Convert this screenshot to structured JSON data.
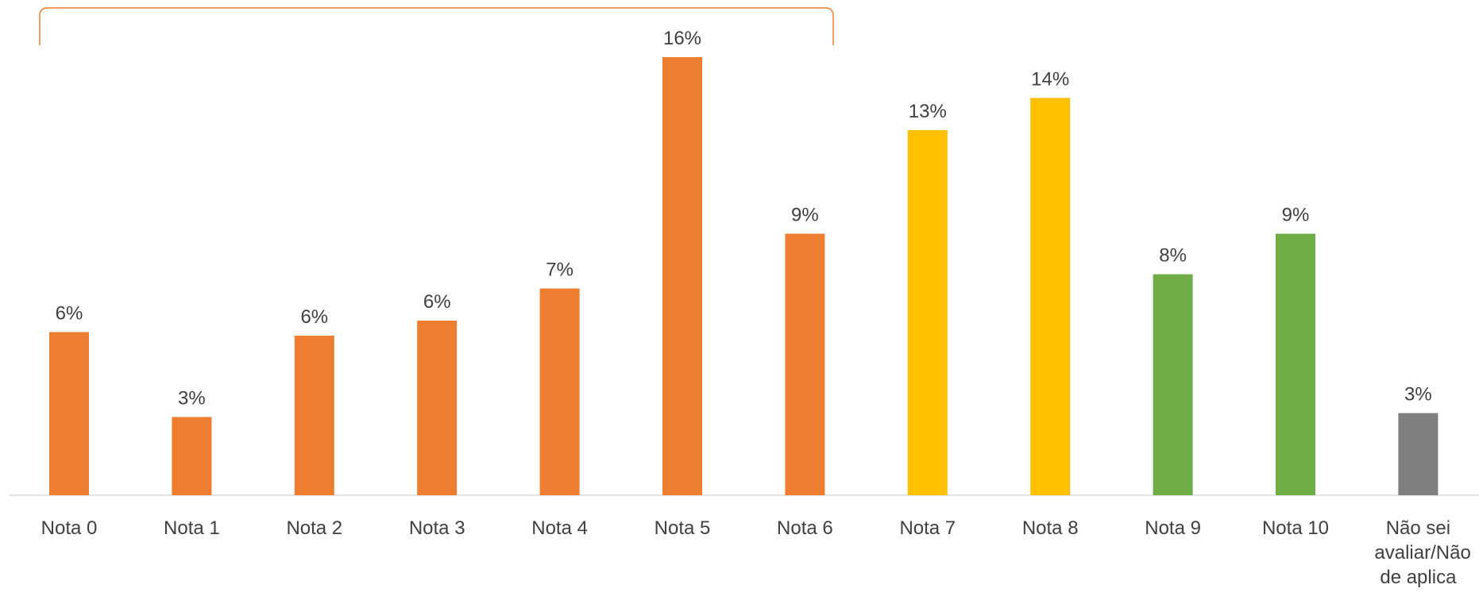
{
  "chart_data": {
    "type": "bar",
    "categories": [
      "Nota 0",
      "Nota 1",
      "Nota 2",
      "Nota 3",
      "Nota 4",
      "Nota 5",
      "Nota 6",
      "Nota 7",
      "Nota 8",
      "Nota 9",
      "Nota 10",
      "Não sei avaliar/Não de aplica"
    ],
    "values": [
      5.84,
      2.8,
      5.71,
      6.25,
      7.4,
      15.68,
      9.36,
      13.07,
      14.22,
      7.91,
      9.36,
      2.94
    ],
    "value_labels": [
      "6%",
      "3%",
      "6%",
      "6%",
      "7%",
      "16%",
      "9%",
      "13%",
      "14%",
      "8%",
      "9%",
      "3%"
    ],
    "colors": [
      "#ED7D31",
      "#ED7D31",
      "#ED7D31",
      "#ED7D31",
      "#ED7D31",
      "#ED7D31",
      "#ED7D31",
      "#FFC000",
      "#FFC000",
      "#70AD47",
      "#70AD47",
      "#7F7F7F"
    ]
  }
}
